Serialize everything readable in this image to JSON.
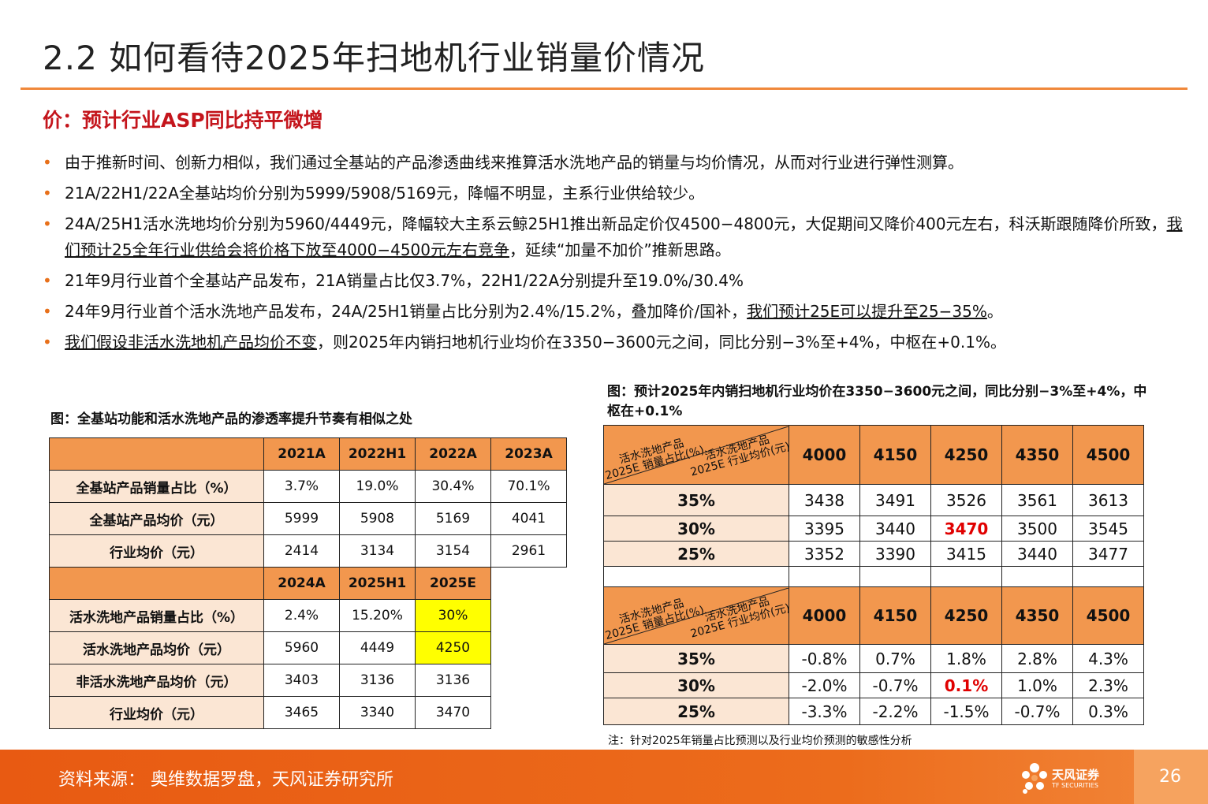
{
  "title": "2.2 如何看待2025年扫地机行业销量价情况",
  "subtitle": "价：预计行业ASP同比持平微增",
  "bullets": [
    {
      "pre": "由于推新时间、创新力相似，我们通过全基站的产品渗透曲线来推算活水洗地产品的销量与均价情况，从而对行业进行弹性测算。",
      "u": "",
      "post": ""
    },
    {
      "pre": "21A/22H1/22A全基站均价分别为5999/5908/5169元，降幅不明显，主系行业供给较少。",
      "u": "",
      "post": ""
    },
    {
      "pre": "24A/25H1活水洗地均价分别为5960/4449元，降幅较大主系云鲸25H1推出新品定价仅4500−4800元，大促期间又降价400元左右，科沃斯跟随降价所致，",
      "u": "我们预计25全年行业供给会将价格下放至4000−4500元左右竞争",
      "post": "，延续“加量不加价”推新思路。"
    },
    {
      "pre": "21年9月行业首个全基站产品发布，21A销量占比仅3.7%，22H1/22A分别提升至19.0%/30.4%",
      "u": "",
      "post": ""
    },
    {
      "pre": "24年9月行业首个活水洗地产品发布，24A/25H1销量占比分别为2.4%/15.2%，叠加降价/国补，",
      "u": "我们预计25E可以提升至25−35%",
      "post": "。"
    },
    {
      "pre": "",
      "u": "我们假设非活水洗地机产品均价不变",
      "post": "，则2025年内销扫地机行业均价在3350−3600元之间，同比分别−3%至+4%，中枢在+0.1%。"
    }
  ],
  "bullet_marker": "•",
  "table1": {
    "caption": "图：全基站功能和活水洗地产品的渗透率提升节奏有相似之处",
    "header1": [
      "2021A",
      "2022H1",
      "2022A",
      "2023A"
    ],
    "rows1": [
      {
        "label": "全基站产品销量占比（%）",
        "cells": [
          "3.7%",
          "19.0%",
          "30.4%",
          "70.1%"
        ]
      },
      {
        "label": "全基站产品均价（元）",
        "cells": [
          "5999",
          "5908",
          "5169",
          "4041"
        ]
      },
      {
        "label": "行业均价（元）",
        "cells": [
          "2414",
          "3134",
          "3154",
          "2961"
        ]
      }
    ],
    "header2": [
      "2024A",
      "2025H1",
      "2025E"
    ],
    "rows2": [
      {
        "label": "活水洗地产品销量占比（%）",
        "cells": [
          "2.4%",
          "15.20%",
          "30%"
        ]
      },
      {
        "label": "活水洗地产品均价（元）",
        "cells": [
          "5960",
          "4449",
          "4250"
        ]
      },
      {
        "label": "非活水洗地产品均价（元）",
        "cells": [
          "3403",
          "3136",
          "3136"
        ]
      },
      {
        "label": "行业均价（元）",
        "cells": [
          "3465",
          "3340",
          "3470"
        ]
      }
    ],
    "highlight_color": "#FFFF00"
  },
  "table2": {
    "caption": "图：预计2025年内销扫地机行业均价在3350−3600元之间，同比分别−3%至+4%，中枢在+0.1%",
    "corner_top_1": "活水洗地产品",
    "corner_top_2": "2025E 行业均价(元)",
    "corner_bot_1": "活水洗地产品",
    "corner_bot_2": "2025E 销量占比(%)",
    "prices": [
      "4000",
      "4150",
      "4250",
      "4350",
      "4500"
    ],
    "block1": [
      {
        "share": "35%",
        "cells": [
          "3438",
          "3491",
          "3526",
          "3561",
          "3613"
        ]
      },
      {
        "share": "30%",
        "cells": [
          "3395",
          "3440",
          "3470",
          "3500",
          "3545"
        ]
      },
      {
        "share": "25%",
        "cells": [
          "3352",
          "3390",
          "3415",
          "3440",
          "3477"
        ]
      }
    ],
    "block2": [
      {
        "share": "35%",
        "cells": [
          "-0.8%",
          "0.7%",
          "1.8%",
          "2.8%",
          "4.3%"
        ]
      },
      {
        "share": "30%",
        "cells": [
          "-2.0%",
          "-0.7%",
          "0.1%",
          "1.0%",
          "2.3%"
        ]
      },
      {
        "share": "25%",
        "cells": [
          "-3.3%",
          "-2.2%",
          "-1.5%",
          "-0.7%",
          "0.3%"
        ]
      }
    ],
    "highlight_text_color": "#E00000",
    "note": "注：针对2025年销量占比预测以及行业均价预测的敏感性分析"
  },
  "footer": {
    "source": "资料来源：  奥维数据罗盘，天风证券研究所",
    "logo_cn": "天风证券",
    "logo_en": "TF SECURITIES",
    "page": "26"
  },
  "colors": {
    "accent": "#F0883A",
    "header_fill": "#F2974E",
    "row_header_fill": "#FBE6D4",
    "subtitle": "#C4151C",
    "footer": "#E85A12"
  }
}
